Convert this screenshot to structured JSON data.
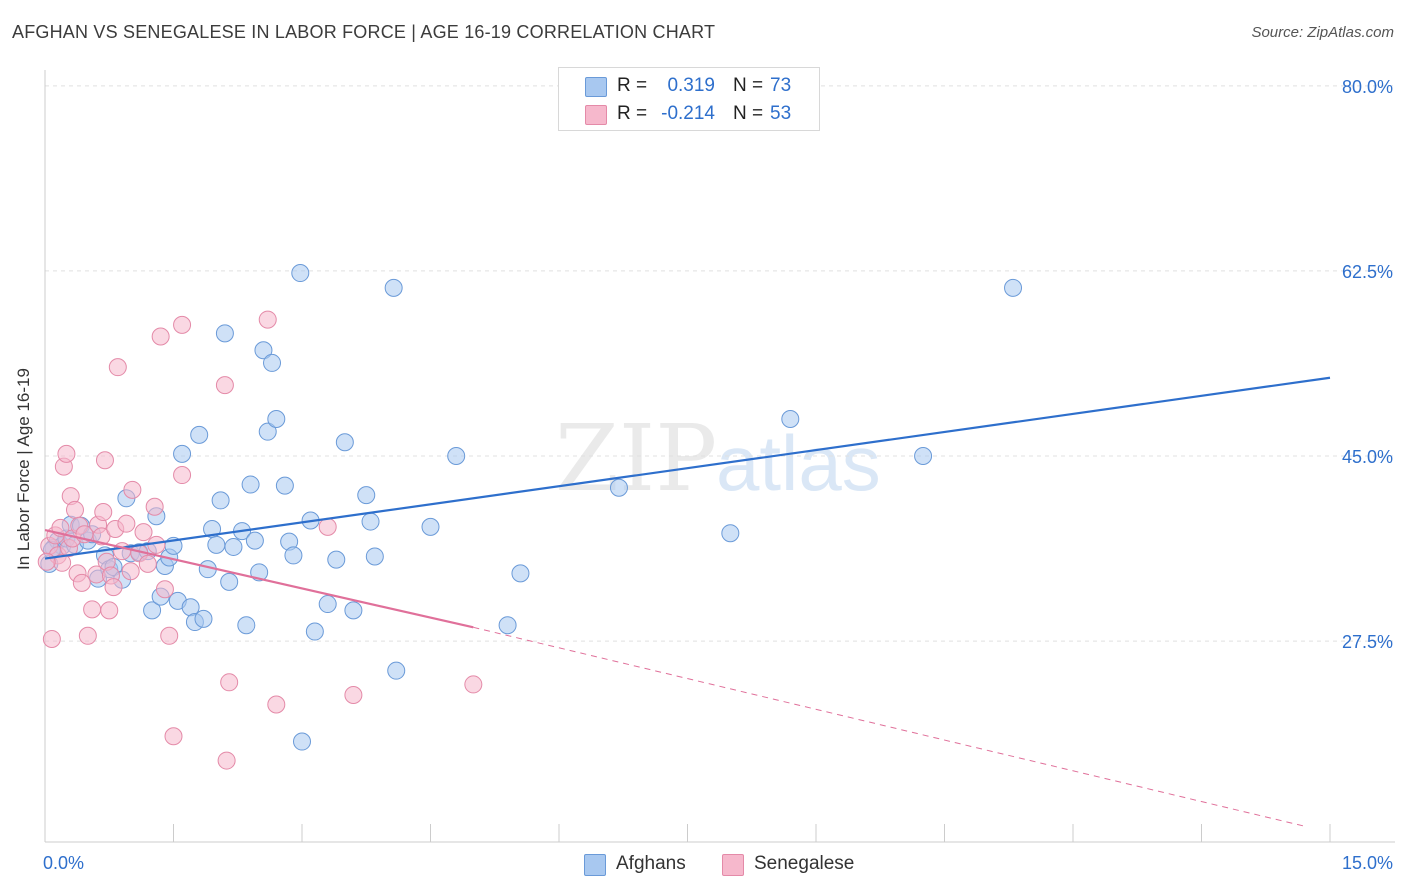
{
  "title": "AFGHAN VS SENEGALESE IN LABOR FORCE | AGE 16-19 CORRELATION CHART",
  "source": "Source: ZipAtlas.com",
  "watermark": {
    "part1": "ZIP",
    "part2": "atlas"
  },
  "colors": {
    "blue_fill": "#a8c8f0",
    "blue_stroke": "#6a9ad8",
    "blue_line": "#2e6fcc",
    "pink_fill": "#f6b8cc",
    "pink_stroke": "#e48aa8",
    "pink_line": "#e0709a",
    "grid": "#e0e0e0",
    "value_text": "#2e6fcc"
  },
  "stats": [
    {
      "label": "R =",
      "r": "0.319",
      "n_label": "N =",
      "n": "73",
      "color": "#a8c8f0"
    },
    {
      "label": "R =",
      "r": "-0.214",
      "n_label": "N =",
      "n": "53",
      "color": "#f6b8cc"
    }
  ],
  "legend": [
    {
      "name": "Afghans",
      "color": "#a8c8f0"
    },
    {
      "name": "Senegalese",
      "color": "#f6b8cc"
    }
  ],
  "chart_data": {
    "type": "scatter",
    "title": "AFGHAN VS SENEGALESE IN LABOR FORCE | AGE 16-19 CORRELATION CHART",
    "xlabel": "",
    "ylabel": "In Labor Force | Age 16-19",
    "xlim": [
      0,
      15
    ],
    "ylim": [
      8.5,
      81.5
    ],
    "x_tick_labels": [
      "0.0%",
      "15.0%"
    ],
    "y_ticks": [
      27.5,
      45.0,
      62.5,
      80.0
    ],
    "y_tick_labels": [
      "27.5%",
      "45.0%",
      "62.5%",
      "80.0%"
    ],
    "grid": true,
    "series": [
      {
        "name": "Afghans",
        "r": 0.319,
        "n": 73,
        "trend": {
          "x": [
            0.0,
            15.0
          ],
          "y": [
            35.3,
            52.4
          ]
        },
        "points": [
          [
            0.05,
            34.8
          ],
          [
            0.1,
            36.3
          ],
          [
            0.15,
            37.0
          ],
          [
            0.2,
            36.5
          ],
          [
            0.25,
            37.2
          ],
          [
            0.3,
            38.5
          ],
          [
            0.35,
            36.6
          ],
          [
            0.42,
            38.4
          ],
          [
            0.5,
            37.0
          ],
          [
            0.55,
            37.6
          ],
          [
            0.62,
            33.4
          ],
          [
            0.7,
            35.6
          ],
          [
            0.75,
            34.3
          ],
          [
            0.8,
            34.5
          ],
          [
            0.9,
            33.3
          ],
          [
            0.95,
            41.0
          ],
          [
            1.0,
            35.8
          ],
          [
            1.1,
            35.9
          ],
          [
            1.2,
            36.0
          ],
          [
            1.25,
            30.4
          ],
          [
            1.3,
            39.3
          ],
          [
            1.35,
            31.7
          ],
          [
            1.4,
            34.6
          ],
          [
            1.45,
            35.4
          ],
          [
            1.5,
            36.5
          ],
          [
            1.55,
            31.3
          ],
          [
            1.6,
            45.2
          ],
          [
            1.7,
            30.7
          ],
          [
            1.75,
            29.3
          ],
          [
            1.8,
            47.0
          ],
          [
            1.85,
            29.6
          ],
          [
            1.9,
            34.3
          ],
          [
            1.95,
            38.1
          ],
          [
            2.0,
            36.6
          ],
          [
            2.05,
            40.8
          ],
          [
            2.1,
            56.6
          ],
          [
            2.15,
            33.1
          ],
          [
            2.2,
            36.4
          ],
          [
            2.3,
            37.9
          ],
          [
            2.35,
            29.0
          ],
          [
            2.4,
            42.3
          ],
          [
            2.45,
            37.0
          ],
          [
            2.5,
            34.0
          ],
          [
            2.55,
            55.0
          ],
          [
            2.6,
            47.3
          ],
          [
            2.65,
            53.8
          ],
          [
            2.7,
            48.5
          ],
          [
            2.8,
            42.2
          ],
          [
            2.85,
            36.9
          ],
          [
            2.9,
            35.6
          ],
          [
            2.98,
            62.3
          ],
          [
            3.0,
            18.0
          ],
          [
            3.1,
            38.9
          ],
          [
            3.15,
            28.4
          ],
          [
            3.3,
            31.0
          ],
          [
            3.4,
            35.2
          ],
          [
            3.5,
            46.3
          ],
          [
            3.6,
            30.4
          ],
          [
            3.75,
            41.3
          ],
          [
            3.8,
            38.8
          ],
          [
            3.85,
            35.5
          ],
          [
            4.07,
            60.9
          ],
          [
            4.1,
            24.7
          ],
          [
            4.5,
            38.3
          ],
          [
            4.8,
            45.0
          ],
          [
            5.4,
            29.0
          ],
          [
            5.55,
            33.9
          ],
          [
            6.7,
            42.0
          ],
          [
            8.0,
            37.7
          ],
          [
            8.7,
            48.5
          ],
          [
            10.25,
            45.0
          ],
          [
            11.3,
            60.9
          ],
          [
            0.08,
            36.1
          ]
        ]
      },
      {
        "name": "Senegalese",
        "r": -0.214,
        "n": 53,
        "trend": {
          "x": [
            0.0,
            5.0
          ],
          "y": [
            38.0,
            28.8
          ]
        },
        "trend_dashed": {
          "x": [
            5.0,
            14.7
          ],
          "y": [
            28.8,
            10.0
          ]
        },
        "points": [
          [
            0.05,
            36.5
          ],
          [
            0.08,
            27.7
          ],
          [
            0.12,
            37.5
          ],
          [
            0.15,
            35.6
          ],
          [
            0.18,
            38.2
          ],
          [
            0.2,
            34.9
          ],
          [
            0.22,
            44.0
          ],
          [
            0.25,
            45.2
          ],
          [
            0.28,
            36.3
          ],
          [
            0.3,
            41.2
          ],
          [
            0.32,
            37.2
          ],
          [
            0.35,
            39.9
          ],
          [
            0.38,
            33.9
          ],
          [
            0.4,
            38.4
          ],
          [
            0.43,
            33.0
          ],
          [
            0.46,
            37.6
          ],
          [
            0.5,
            28.0
          ],
          [
            0.55,
            30.5
          ],
          [
            0.6,
            33.8
          ],
          [
            0.62,
            38.5
          ],
          [
            0.66,
            37.4
          ],
          [
            0.68,
            39.7
          ],
          [
            0.7,
            44.6
          ],
          [
            0.72,
            35.0
          ],
          [
            0.75,
            30.4
          ],
          [
            0.77,
            33.7
          ],
          [
            0.8,
            32.6
          ],
          [
            0.82,
            38.1
          ],
          [
            0.85,
            53.4
          ],
          [
            0.9,
            36.0
          ],
          [
            0.95,
            38.6
          ],
          [
            1.0,
            34.1
          ],
          [
            1.02,
            41.8
          ],
          [
            1.1,
            35.8
          ],
          [
            1.15,
            37.8
          ],
          [
            1.2,
            34.8
          ],
          [
            1.28,
            40.2
          ],
          [
            1.3,
            36.6
          ],
          [
            1.35,
            56.3
          ],
          [
            1.4,
            32.4
          ],
          [
            1.45,
            28.0
          ],
          [
            1.5,
            18.5
          ],
          [
            1.6,
            43.2
          ],
          [
            1.6,
            57.4
          ],
          [
            2.1,
            51.7
          ],
          [
            2.12,
            16.2
          ],
          [
            2.15,
            23.6
          ],
          [
            2.6,
            57.9
          ],
          [
            2.7,
            21.5
          ],
          [
            3.3,
            38.3
          ],
          [
            3.6,
            22.4
          ],
          [
            5.0,
            23.4
          ],
          [
            0.02,
            35.0
          ]
        ]
      }
    ]
  }
}
